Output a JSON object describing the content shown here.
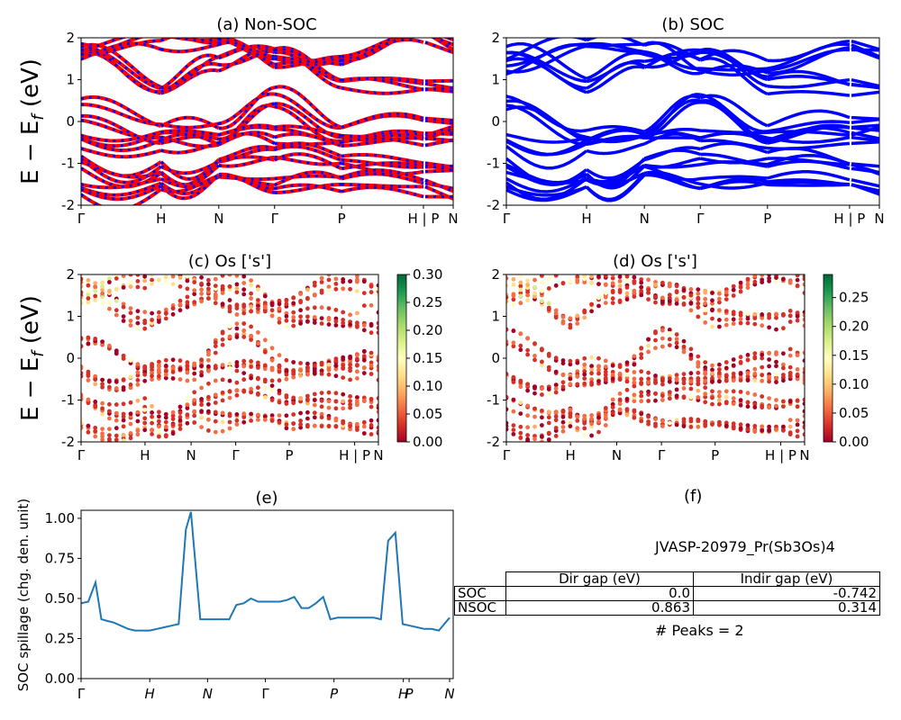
{
  "figure_title": "",
  "colors": {
    "nonsoc_band_a": "#ff0000",
    "nonsoc_band_b": "#0000ff",
    "soc_band": "#0000ff",
    "spillage_line": "#1f77b4",
    "colormap": [
      "#a50026",
      "#d73027",
      "#f46d43",
      "#fdae61",
      "#fee08b",
      "#ffffbf",
      "#d9ef8b",
      "#a6d96a",
      "#66bd63",
      "#1a9850",
      "#006837"
    ]
  },
  "ylabel_bands": "E − E_f (eV)",
  "ylabel_bands_main": "E − E",
  "ylabel_bands_sub": "f",
  "ylabel_bands_unit": " (eV)",
  "kpath_labels": [
    "Γ",
    "H",
    "N",
    "Γ",
    "P",
    "H | P",
    "N"
  ],
  "chart_data": [
    {
      "panel": "a",
      "type": "line",
      "title": "(a) Non-SOC",
      "ylabel": "E − E_f (eV)",
      "ylim": [
        -2,
        2
      ],
      "yticks": [
        -2,
        -1,
        0,
        1,
        2
      ],
      "xticks": [
        "Γ",
        "H",
        "N",
        "Γ",
        "P",
        "H | P",
        "N"
      ],
      "series_colors": [
        "red",
        "blue"
      ],
      "description_bands": [
        {
          "name": "conduction band 1",
          "values_at_kpts": [
            1.85,
            0.9,
            1.5,
            1.75,
            1.0,
            0.95,
            0.9
          ]
        },
        {
          "name": "conduction band 2",
          "values_at_kpts": [
            1.45,
            1.9,
            1.85,
            1.3,
            1.4,
            1.9,
            1.7
          ]
        },
        {
          "name": "valence band top",
          "values_at_kpts": [
            0.3,
            -0.3,
            -0.3,
            0.55,
            -0.35,
            -0.1,
            -0.1
          ]
        },
        {
          "name": "valence band 2",
          "values_at_kpts": [
            -0.35,
            -0.4,
            -0.35,
            -0.3,
            -0.4,
            -0.35,
            -0.3
          ]
        },
        {
          "name": "valence band 3",
          "values_at_kpts": [
            -1.0,
            -1.2,
            -1.0,
            -0.85,
            -1.0,
            -1.1,
            -1.2
          ]
        },
        {
          "name": "valence band 4",
          "values_at_kpts": [
            -1.6,
            -1.5,
            -1.3,
            -1.55,
            -1.55,
            -1.6,
            -1.7
          ]
        }
      ]
    },
    {
      "panel": "b",
      "type": "line",
      "title": "(b) SOC",
      "ylim": [
        -2,
        2
      ],
      "yticks": [
        -2,
        -1,
        0,
        1,
        2
      ],
      "xticks": [
        "Γ",
        "H",
        "N",
        "Γ",
        "P",
        "H | P",
        "N"
      ],
      "series_colors": [
        "blue"
      ],
      "description_bands": [
        {
          "name": "conduction band 1",
          "values_at_kpts": [
            1.75,
            0.9,
            1.45,
            1.7,
            0.95,
            0.9,
            0.85
          ]
        },
        {
          "name": "conduction band 2",
          "values_at_kpts": [
            1.4,
            1.85,
            1.8,
            1.3,
            1.35,
            1.85,
            1.7
          ]
        },
        {
          "name": "valence band top",
          "values_at_kpts": [
            0.45,
            -0.35,
            -0.3,
            0.5,
            -0.35,
            -0.1,
            -0.1
          ]
        },
        {
          "name": "valence band 2",
          "values_at_kpts": [
            -0.4,
            -0.45,
            -0.4,
            -0.35,
            -0.45,
            -0.4,
            -0.35
          ]
        },
        {
          "name": "valence band 3",
          "values_at_kpts": [
            -1.05,
            -1.25,
            -1.05,
            -0.9,
            -1.0,
            -1.1,
            -1.2
          ]
        },
        {
          "name": "valence band 4",
          "values_at_kpts": [
            -1.65,
            -1.55,
            -1.35,
            -1.6,
            -1.6,
            -1.65,
            -1.75
          ]
        }
      ]
    },
    {
      "panel": "c",
      "type": "scatter",
      "title": "(c)  Os ['s']",
      "ylabel": "E − E_f (eV)",
      "ylim": [
        -2,
        2
      ],
      "yticks": [
        -2,
        -1,
        0,
        1,
        2
      ],
      "xticks": [
        "Γ",
        "H",
        "N",
        "Γ",
        "P",
        "H | P",
        "N"
      ],
      "colorbar": {
        "range": [
          0.0,
          0.3
        ],
        "ticks": [
          "0.00",
          "0.05",
          "0.10",
          "0.15",
          "0.20",
          "0.25",
          "0.30"
        ]
      }
    },
    {
      "panel": "d",
      "type": "scatter",
      "title": "(d) Os ['s']",
      "ylim": [
        -2,
        2
      ],
      "yticks": [
        -2,
        -1,
        0,
        1,
        2
      ],
      "xticks": [
        "Γ",
        "H",
        "N",
        "Γ",
        "P",
        "H | P",
        "N"
      ],
      "colorbar": {
        "range": [
          0.0,
          0.29
        ],
        "ticks": [
          "0.00",
          "0.05",
          "0.10",
          "0.15",
          "0.20",
          "0.25"
        ]
      }
    },
    {
      "panel": "e",
      "type": "line",
      "title": "(e)",
      "ylabel": "SOC spillage (chg. den. unit)",
      "ylim": [
        0,
        1.05
      ],
      "yticks": [
        "0.00",
        "0.25",
        "0.50",
        "0.75",
        "1.00"
      ],
      "xticks": [
        "Γ",
        "H",
        "N",
        "Γ",
        "P",
        "H",
        "P",
        "N"
      ],
      "xtick_positions": [
        0,
        9.5,
        17.5,
        25.5,
        35,
        44.6,
        45.4,
        51
      ],
      "x": [
        0,
        1,
        2,
        2.8,
        3.6,
        4.5,
        5.5,
        6.5,
        7.5,
        8.5,
        9.5,
        10.5,
        11.5,
        12.5,
        13.5,
        14.5,
        15.2,
        16.5,
        17.5,
        18.5,
        19.5,
        20.5,
        21.5,
        22.5,
        23.5,
        24.5,
        25.5,
        26.5,
        27.5,
        28.5,
        29.5,
        30.5,
        31.5,
        32.5,
        33.5,
        34.5,
        35.5,
        36.5,
        37.5,
        38.5,
        39.5,
        40.5,
        41.5,
        42.5,
        43.5,
        44.5,
        45.5,
        46.5,
        47.5,
        48.5,
        49.5,
        51
      ],
      "values": [
        0.47,
        0.48,
        0.6,
        0.37,
        0.36,
        0.35,
        0.33,
        0.31,
        0.3,
        0.3,
        0.3,
        0.31,
        0.32,
        0.33,
        0.34,
        0.93,
        1.04,
        0.37,
        0.37,
        0.37,
        0.37,
        0.37,
        0.46,
        0.47,
        0.5,
        0.48,
        0.48,
        0.48,
        0.48,
        0.49,
        0.51,
        0.44,
        0.44,
        0.47,
        0.51,
        0.37,
        0.38,
        0.38,
        0.38,
        0.38,
        0.38,
        0.38,
        0.37,
        0.86,
        0.91,
        0.34,
        0.33,
        0.32,
        0.31,
        0.31,
        0.3,
        0.38
      ]
    }
  ],
  "panel_f": {
    "label": "(f)",
    "material": "JVASP-20979_Pr(Sb3Os)4",
    "headers": [
      "Dir gap (eV)",
      "Indir gap (eV)"
    ],
    "rows": [
      {
        "label": "SOC",
        "dir": "0.0",
        "indir": "-0.742"
      },
      {
        "label": "NSOC",
        "dir": "0.863",
        "indir": "0.314"
      }
    ],
    "peaks": "# Peaks = 2"
  }
}
